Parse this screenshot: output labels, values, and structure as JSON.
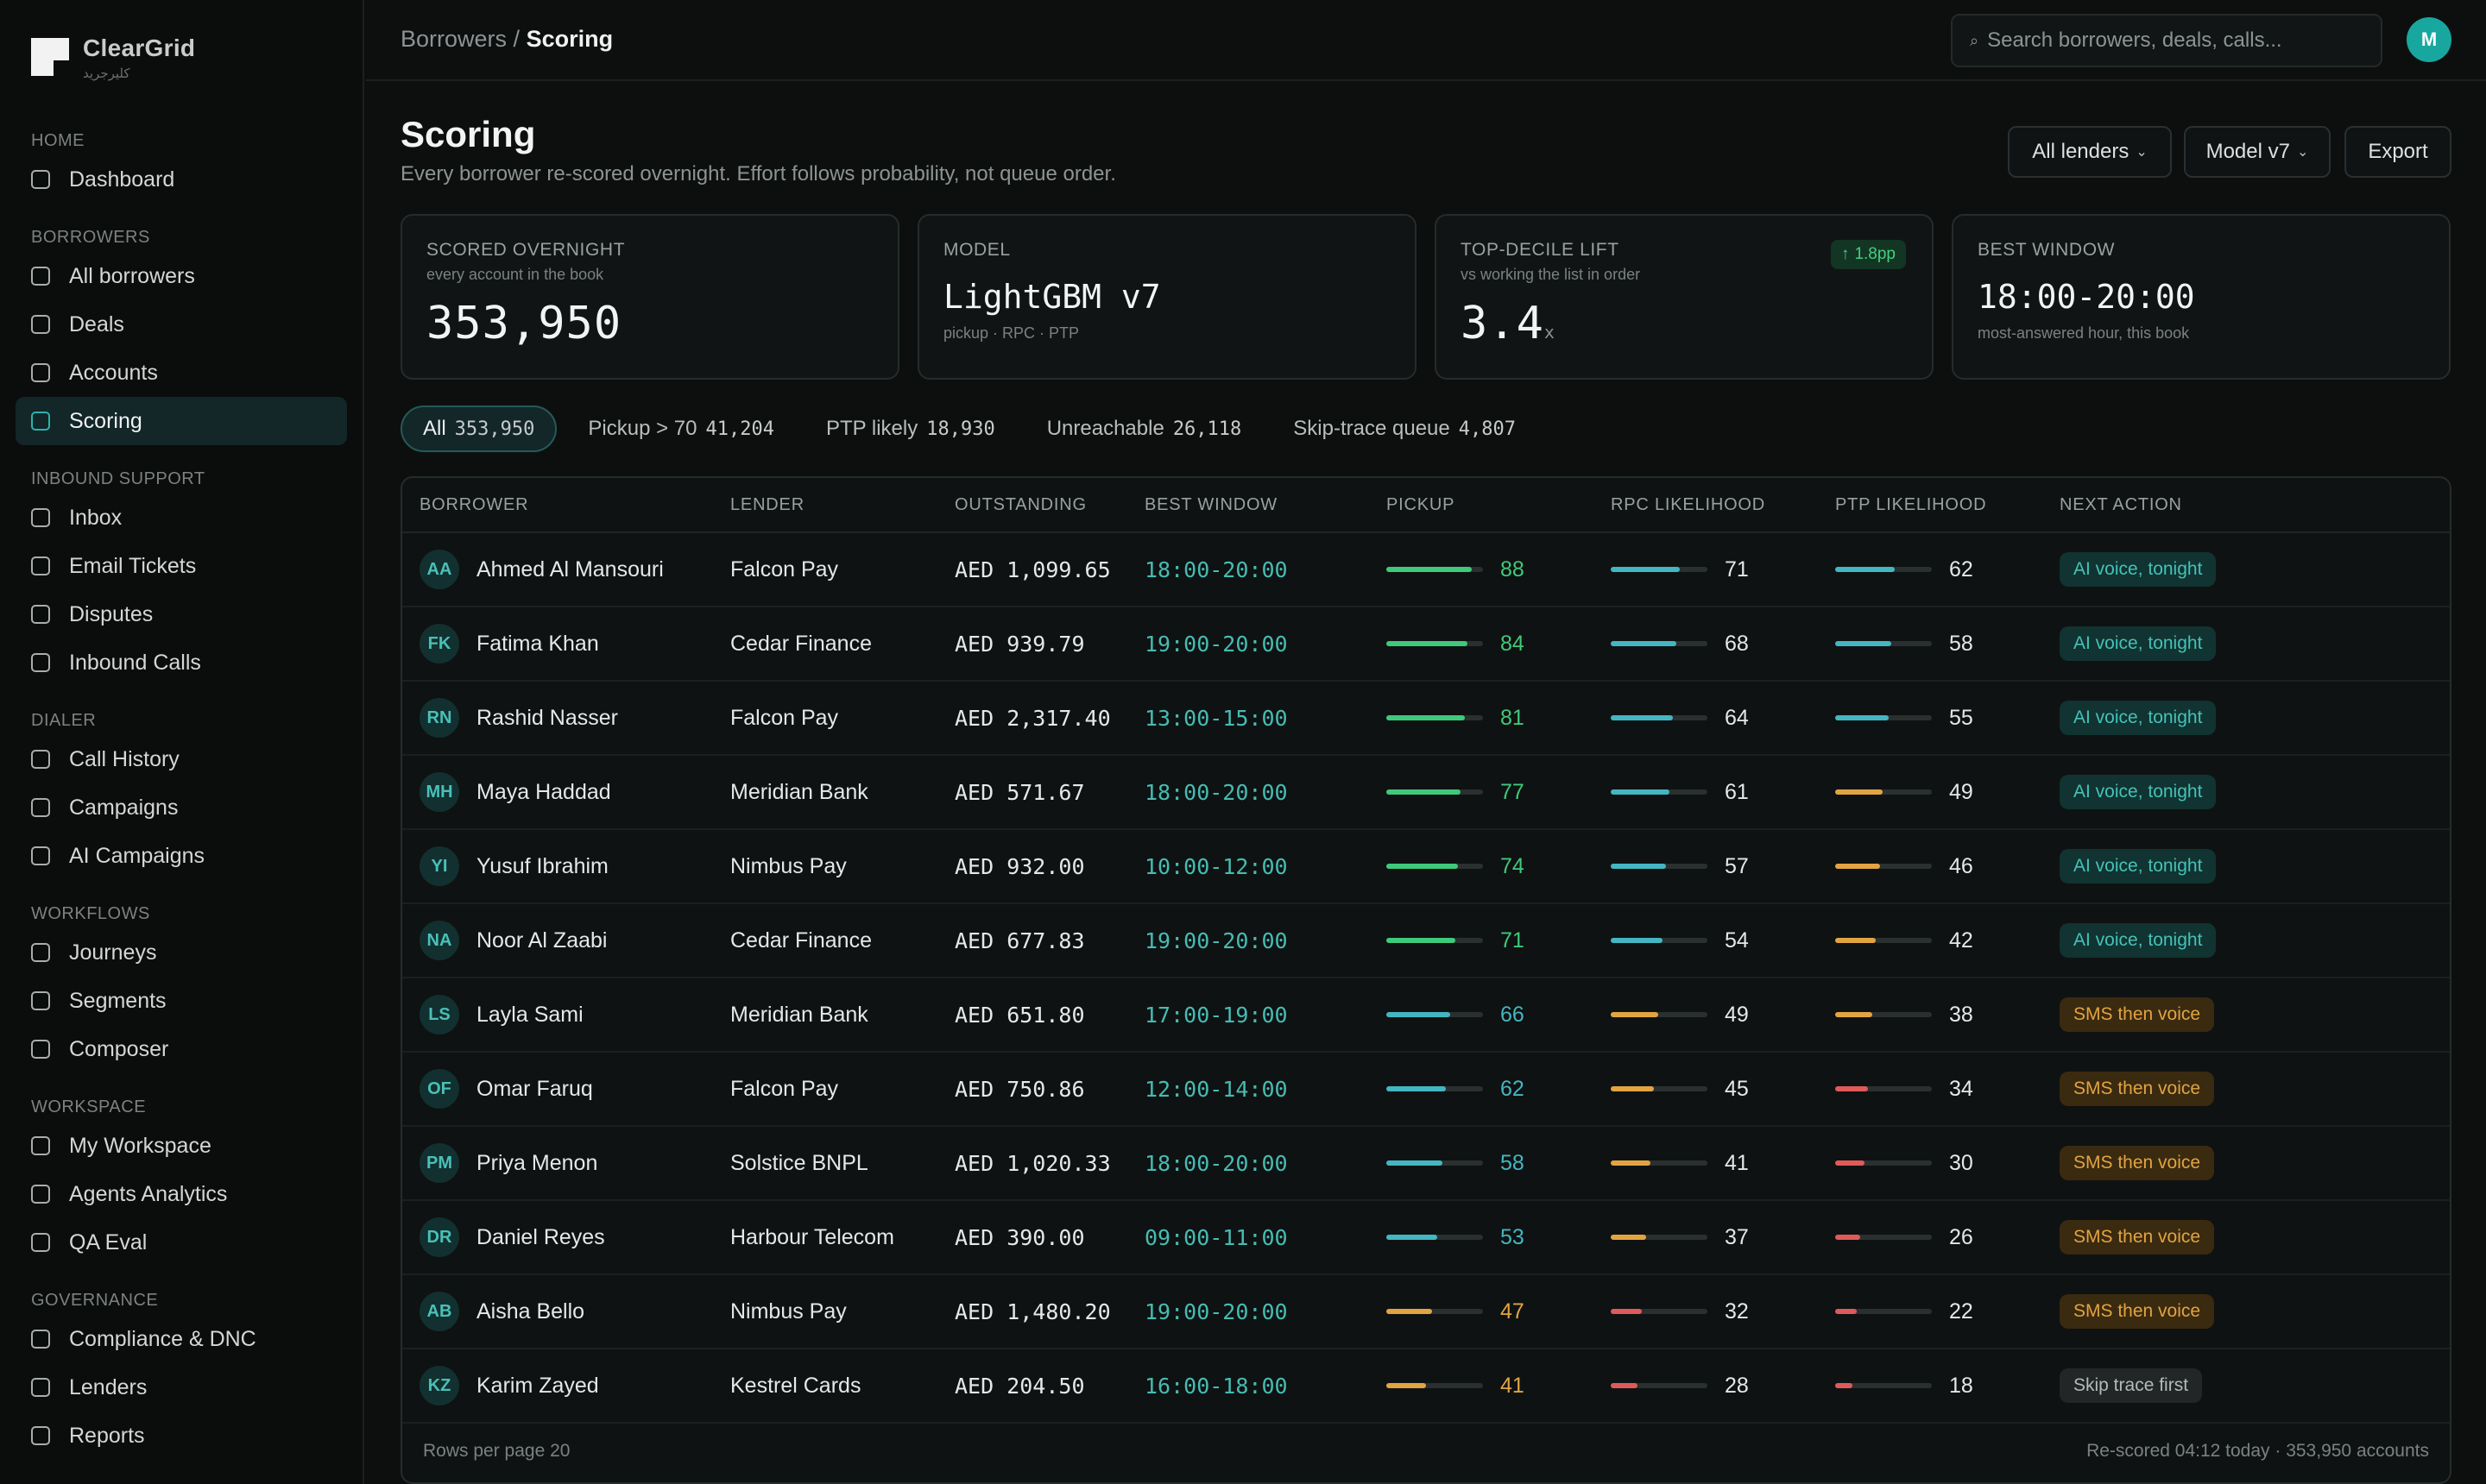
{
  "brand": {
    "name": "ClearGrid",
    "sub": "كليرجريد"
  },
  "sidebar": {
    "sections": [
      {
        "title": "HOME",
        "items": [
          {
            "label": "Dashboard"
          }
        ]
      },
      {
        "title": "BORROWERS",
        "items": [
          {
            "label": "All borrowers"
          },
          {
            "label": "Deals"
          },
          {
            "label": "Accounts"
          },
          {
            "label": "Scoring",
            "active": true
          }
        ]
      },
      {
        "title": "INBOUND SUPPORT",
        "items": [
          {
            "label": "Inbox"
          },
          {
            "label": "Email Tickets"
          },
          {
            "label": "Disputes"
          },
          {
            "label": "Inbound Calls"
          }
        ]
      },
      {
        "title": "DIALER",
        "items": [
          {
            "label": "Call History"
          },
          {
            "label": "Campaigns"
          },
          {
            "label": "AI Campaigns"
          }
        ]
      },
      {
        "title": "WORKFLOWS",
        "items": [
          {
            "label": "Journeys"
          },
          {
            "label": "Segments"
          },
          {
            "label": "Composer"
          }
        ]
      },
      {
        "title": "WORKSPACE",
        "items": [
          {
            "label": "My Workspace"
          },
          {
            "label": "Agents Analytics"
          },
          {
            "label": "QA Eval"
          }
        ]
      },
      {
        "title": "GOVERNANCE",
        "items": [
          {
            "label": "Compliance & DNC"
          },
          {
            "label": "Lenders"
          },
          {
            "label": "Reports"
          }
        ]
      }
    ]
  },
  "topbar": {
    "breadcrumb_parent": "Borrowers",
    "breadcrumb_sep": "/",
    "breadcrumb_current": "Scoring",
    "search_placeholder": "Search borrowers, deals, calls...",
    "user_initial": "M"
  },
  "header": {
    "title": "Scoring",
    "subtitle": "Every borrower re-scored overnight. Effort follows probability, not queue order.",
    "buttons": {
      "lenders": "All lenders",
      "model": "Model v7",
      "export": "Export"
    }
  },
  "kpis": {
    "scored": {
      "label": "SCORED OVERNIGHT",
      "hint": "every account in the book",
      "value": "353,950"
    },
    "model": {
      "label": "MODEL",
      "value": "LightGBM v7",
      "hint": "pickup · RPC · PTP"
    },
    "lift": {
      "label": "TOP-DECILE LIFT",
      "hint": "vs working the list in order",
      "value": "3.4",
      "unit": "x",
      "badge": "1.8pp"
    },
    "window": {
      "label": "BEST WINDOW",
      "value": "18:00-20:00",
      "hint": "most-answered hour, this book"
    }
  },
  "filters": [
    {
      "label": "All",
      "count": "353,950",
      "active": true
    },
    {
      "label": "Pickup > 70",
      "count": "41,204"
    },
    {
      "label": "PTP likely",
      "count": "18,930"
    },
    {
      "label": "Unreachable",
      "count": "26,118"
    },
    {
      "label": "Skip-trace queue",
      "count": "4,807"
    }
  ],
  "table": {
    "columns": [
      "BORROWER",
      "LENDER",
      "OUTSTANDING",
      "BEST WINDOW",
      "PICKUP",
      "RPC LIKELIHOOD",
      "PTP LIKELIHOOD",
      "NEXT ACTION"
    ],
    "rows": [
      {
        "initials": "AA",
        "name": "Ahmed Al Mansouri",
        "lender": "Falcon Pay",
        "outstanding": "AED 1,099.65",
        "window": "18:00-20:00",
        "pickup": 88,
        "rpc": 71,
        "ptp": 62,
        "action": "AI voice, tonight",
        "action_type": "ai"
      },
      {
        "initials": "FK",
        "name": "Fatima Khan",
        "lender": "Cedar Finance",
        "outstanding": "AED 939.79",
        "window": "19:00-20:00",
        "pickup": 84,
        "rpc": 68,
        "ptp": 58,
        "action": "AI voice, tonight",
        "action_type": "ai"
      },
      {
        "initials": "RN",
        "name": "Rashid Nasser",
        "lender": "Falcon Pay",
        "outstanding": "AED 2,317.40",
        "window": "13:00-15:00",
        "pickup": 81,
        "rpc": 64,
        "ptp": 55,
        "action": "AI voice, tonight",
        "action_type": "ai"
      },
      {
        "initials": "MH",
        "name": "Maya Haddad",
        "lender": "Meridian Bank",
        "outstanding": "AED 571.67",
        "window": "18:00-20:00",
        "pickup": 77,
        "rpc": 61,
        "ptp": 49,
        "action": "AI voice, tonight",
        "action_type": "ai"
      },
      {
        "initials": "YI",
        "name": "Yusuf Ibrahim",
        "lender": "Nimbus Pay",
        "outstanding": "AED 932.00",
        "window": "10:00-12:00",
        "pickup": 74,
        "rpc": 57,
        "ptp": 46,
        "action": "AI voice, tonight",
        "action_type": "ai"
      },
      {
        "initials": "NA",
        "name": "Noor Al Zaabi",
        "lender": "Cedar Finance",
        "outstanding": "AED 677.83",
        "window": "19:00-20:00",
        "pickup": 71,
        "rpc": 54,
        "ptp": 42,
        "action": "AI voice, tonight",
        "action_type": "ai"
      },
      {
        "initials": "LS",
        "name": "Layla Sami",
        "lender": "Meridian Bank",
        "outstanding": "AED 651.80",
        "window": "17:00-19:00",
        "pickup": 66,
        "rpc": 49,
        "ptp": 38,
        "action": "SMS then voice",
        "action_type": "sms"
      },
      {
        "initials": "OF",
        "name": "Omar Faruq",
        "lender": "Falcon Pay",
        "outstanding": "AED 750.86",
        "window": "12:00-14:00",
        "pickup": 62,
        "rpc": 45,
        "ptp": 34,
        "action": "SMS then voice",
        "action_type": "sms"
      },
      {
        "initials": "PM",
        "name": "Priya Menon",
        "lender": "Solstice BNPL",
        "outstanding": "AED 1,020.33",
        "window": "18:00-20:00",
        "pickup": 58,
        "rpc": 41,
        "ptp": 30,
        "action": "SMS then voice",
        "action_type": "sms"
      },
      {
        "initials": "DR",
        "name": "Daniel Reyes",
        "lender": "Harbour Telecom",
        "outstanding": "AED 390.00",
        "window": "09:00-11:00",
        "pickup": 53,
        "rpc": 37,
        "ptp": 26,
        "action": "SMS then voice",
        "action_type": "sms"
      },
      {
        "initials": "AB",
        "name": "Aisha Bello",
        "lender": "Nimbus Pay",
        "outstanding": "AED 1,480.20",
        "window": "19:00-20:00",
        "pickup": 47,
        "rpc": 32,
        "ptp": 22,
        "action": "SMS then voice",
        "action_type": "sms"
      },
      {
        "initials": "KZ",
        "name": "Karim Zayed",
        "lender": "Kestrel Cards",
        "outstanding": "AED 204.50",
        "window": "16:00-18:00",
        "pickup": 41,
        "rpc": 28,
        "ptp": 18,
        "action": "Skip trace first",
        "action_type": "skip"
      }
    ],
    "footer_left": "Rows per page 20",
    "footer_right": "Re-scored 04:12 today · 353,950 accounts"
  },
  "colors": {
    "accent": "#2ab3ae",
    "green": "#3fc97a",
    "teal": "#44b6c2",
    "amber": "#e2a441",
    "red": "#e05a5a"
  }
}
